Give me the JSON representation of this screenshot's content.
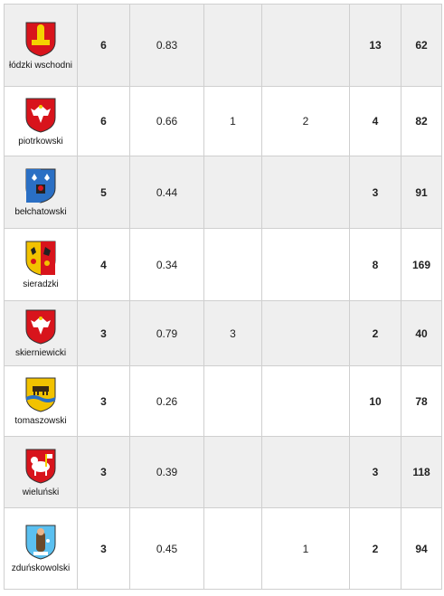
{
  "rows": [
    {
      "name": "łódzki wschodni",
      "c1": "6",
      "c2": "0.83",
      "c3": "",
      "c4": "",
      "c5": "13",
      "c6": "62",
      "crest_color": "#d8141c",
      "crest_icon": "crest-lodzki-wschodni-icon"
    },
    {
      "name": "piotrkowski",
      "c1": "6",
      "c2": "0.66",
      "c3": "1",
      "c4": "2",
      "c5": "4",
      "c6": "82",
      "crest_color": "#d8141c",
      "crest_icon": "crest-piotrkowski-icon"
    },
    {
      "name": "bełchatowski",
      "c1": "5",
      "c2": "0.44",
      "c3": "",
      "c4": "",
      "c5": "3",
      "c6": "91",
      "crest_color": "#2a6fc4",
      "crest_icon": "crest-belchatowski-icon"
    },
    {
      "name": "sieradzki",
      "c1": "4",
      "c2": "0.34",
      "c3": "",
      "c4": "",
      "c5": "8",
      "c6": "169",
      "crest_color": "#f2c200",
      "crest_icon": "crest-sieradzki-icon"
    },
    {
      "name": "skierniewicki",
      "c1": "3",
      "c2": "0.79",
      "c3": "3",
      "c4": "",
      "c5": "2",
      "c6": "40",
      "crest_color": "#d8141c",
      "crest_icon": "crest-skierniewicki-icon"
    },
    {
      "name": "tomaszowski",
      "c1": "3",
      "c2": "0.26",
      "c3": "",
      "c4": "",
      "c5": "10",
      "c6": "78",
      "crest_color": "#f2c200",
      "crest_icon": "crest-tomaszowski-icon"
    },
    {
      "name": "wieluński",
      "c1": "3",
      "c2": "0.39",
      "c3": "",
      "c4": "",
      "c5": "3",
      "c6": "118",
      "crest_color": "#d8141c",
      "crest_icon": "crest-wielunski-icon"
    },
    {
      "name": "zduńskowolski",
      "c1": "3",
      "c2": "0.45",
      "c3": "",
      "c4": "1",
      "c5": "2",
      "c6": "94",
      "crest_color": "#5bc0f0",
      "crest_icon": "crest-zdunskowolski-icon"
    }
  ]
}
